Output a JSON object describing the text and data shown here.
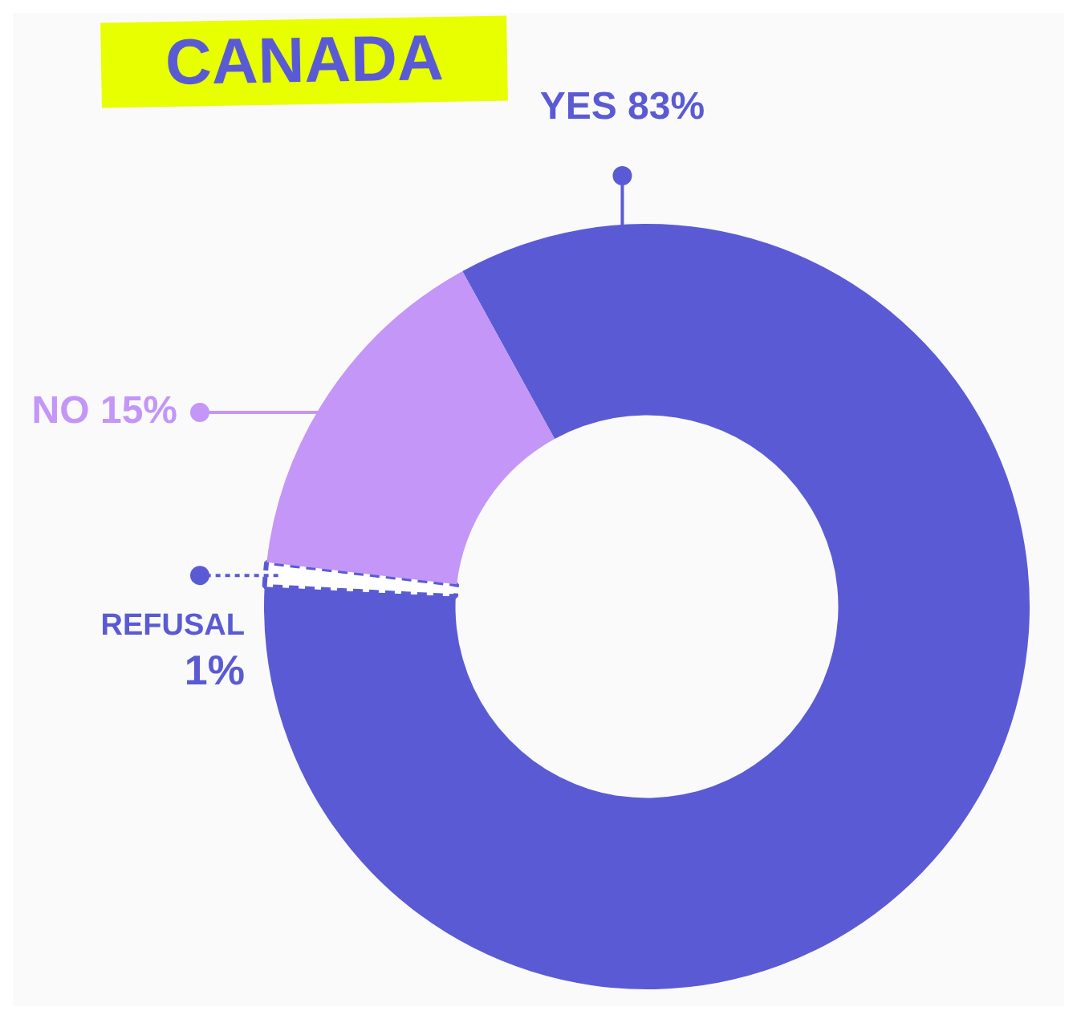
{
  "chart_data": {
    "type": "donut",
    "title": "CANADA",
    "categories": [
      "YES",
      "REFUSAL",
      "NO"
    ],
    "values": [
      83,
      1,
      15
    ],
    "colors": [
      "#5a5bd4",
      "#ffffff",
      "#c396f7"
    ],
    "value_labels": [
      "83%",
      "1%",
      "15%"
    ]
  }
}
